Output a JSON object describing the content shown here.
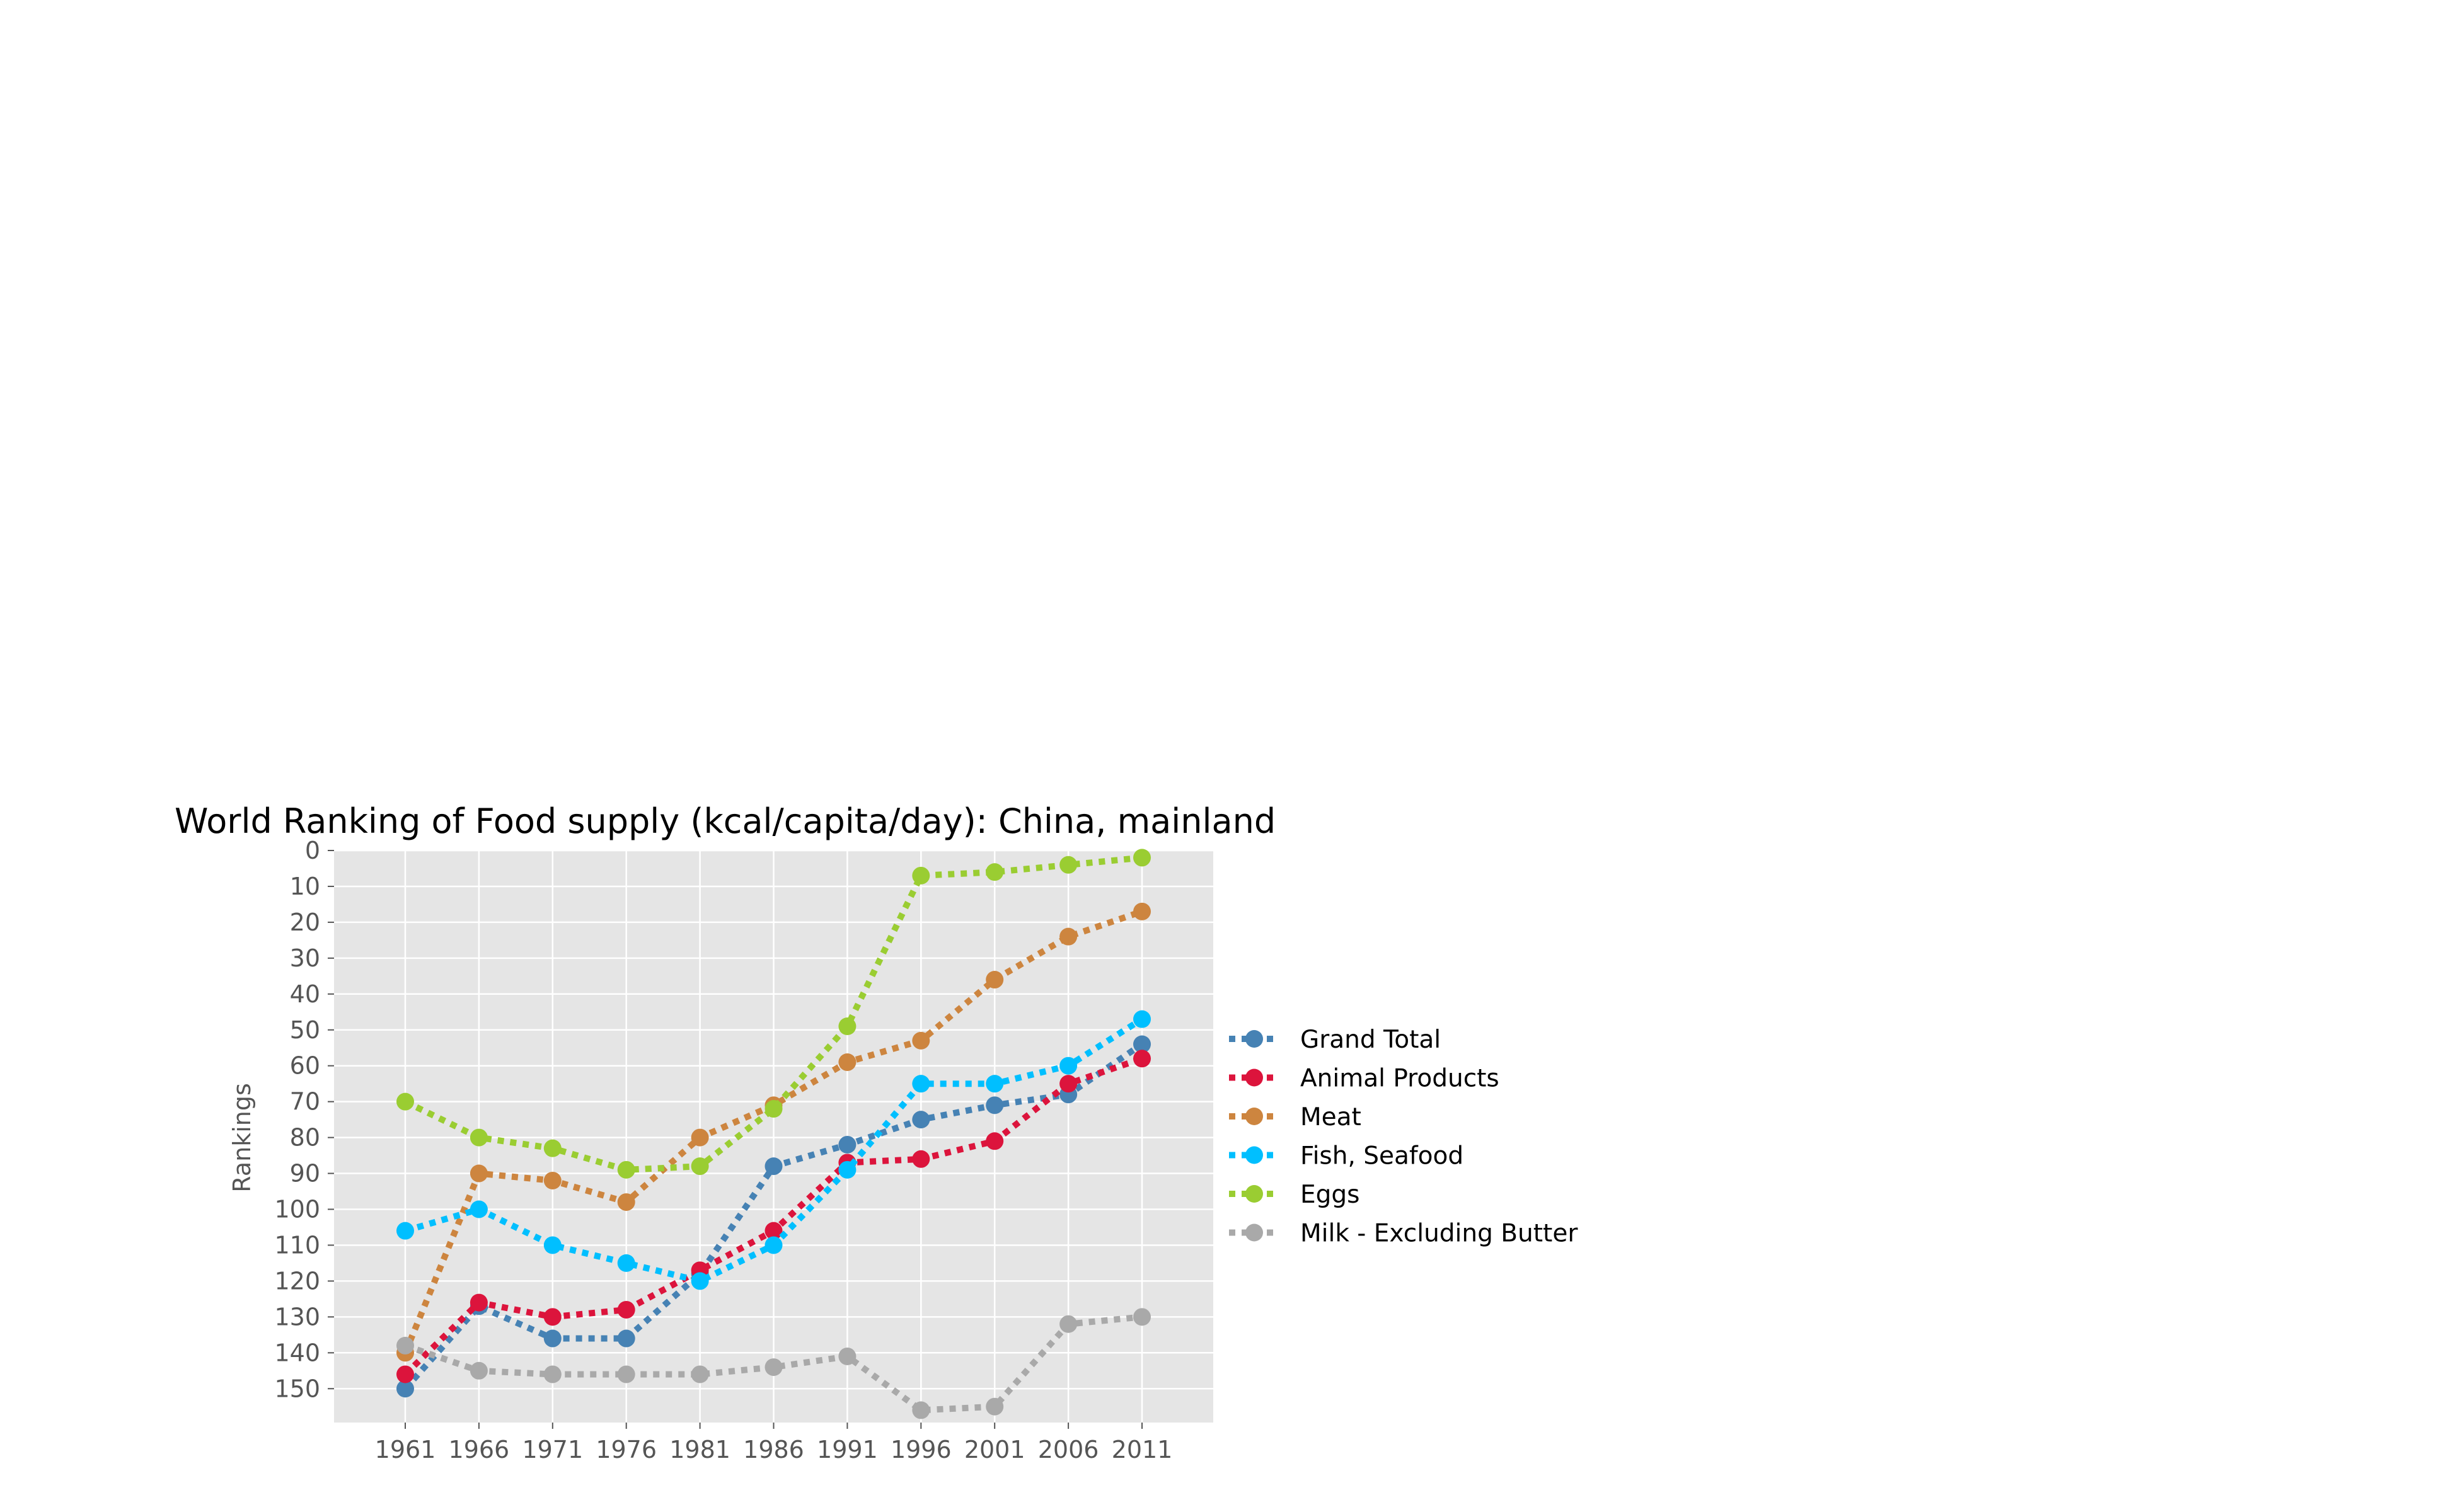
{
  "chart_data": {
    "type": "line",
    "title": "World Ranking of Food supply (kcal/capita/day): China, mainland",
    "xlabel": "",
    "ylabel": "Rankings",
    "x": [
      1961,
      1966,
      1971,
      1976,
      1981,
      1986,
      1991,
      1996,
      2001,
      2006,
      2011
    ],
    "y_ticks": [
      0,
      10,
      20,
      30,
      40,
      50,
      60,
      70,
      80,
      90,
      100,
      110,
      120,
      130,
      140,
      150
    ],
    "ylim": [
      160,
      0
    ],
    "y_inverted": true,
    "grid": true,
    "line_style": "dotted",
    "legend_placement": "right",
    "series": [
      {
        "name": "Grand Total",
        "color": "#4682b4",
        "values": [
          150,
          127,
          136,
          136,
          118,
          88,
          82,
          75,
          71,
          68,
          54
        ]
      },
      {
        "name": "Animal Products",
        "color": "#dc143c",
        "values": [
          146,
          126,
          130,
          128,
          117,
          106,
          87,
          86,
          81,
          65,
          58
        ]
      },
      {
        "name": "Meat",
        "color": "#cd853f",
        "values": [
          140,
          90,
          92,
          98,
          80,
          71,
          59,
          53,
          36,
          24,
          17
        ]
      },
      {
        "name": "Fish, Seafood",
        "color": "#00bfff",
        "values": [
          106,
          100,
          110,
          115,
          120,
          110,
          89,
          65,
          65,
          60,
          47
        ]
      },
      {
        "name": "Eggs",
        "color": "#9acd32",
        "values": [
          70,
          80,
          83,
          89,
          88,
          72,
          49,
          7,
          6,
          4,
          2
        ]
      },
      {
        "name": "Milk - Excluding Butter",
        "color": "#a9a9a9",
        "values": [
          138,
          145,
          146,
          146,
          146,
          144,
          141,
          156,
          155,
          132,
          130
        ]
      }
    ]
  }
}
